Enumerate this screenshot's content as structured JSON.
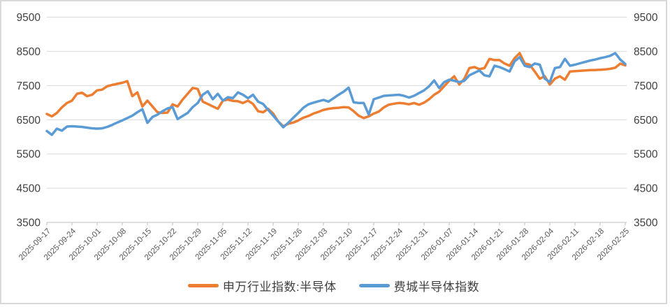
{
  "chart_data": {
    "type": "line",
    "title": "",
    "description_x": "daily points, one per trading day; axis labels shown weekly",
    "x_start_label": "2025-09-17",
    "x_end_label": "2026-02-25",
    "points_per_x_label": 5,
    "x_tick_labels": [
      "2025-09-17",
      "2025-09-24",
      "2025-10-01",
      "2025-10-08",
      "2025-10-15",
      "2025-10-22",
      "2025-10-29",
      "2025-11-05",
      "2025-11-12",
      "2025-11-19",
      "2025-11-26",
      "2025-12-03",
      "2025-12-10",
      "2025-12-17",
      "2025-12-24",
      "2025-12-31",
      "2026-01-07",
      "2026-01-14",
      "2026-01-21",
      "2026-01-28",
      "2026-02-04",
      "2026-02-11",
      "2026-02-18",
      "2026-02-25"
    ],
    "y_ticks": [
      3500,
      4500,
      5500,
      6500,
      7500,
      8500,
      9500
    ],
    "ylim": [
      3500,
      9500
    ],
    "y_axis_sides": [
      "left",
      "right"
    ],
    "grid": true,
    "legend_position": "bottom",
    "colors": {
      "gridline": "#d9d9d9",
      "axis_line": "#bfbfbf",
      "y_label_text": "#404040",
      "x_label_text": "#595959",
      "legend_text": "#404040"
    },
    "series": [
      {
        "name": "申万行业指数:半导体",
        "color": "#ED7D31",
        "values": [
          6670,
          6600,
          6700,
          6860,
          6990,
          7060,
          7260,
          7290,
          7190,
          7230,
          7360,
          7380,
          7480,
          7520,
          7550,
          7580,
          7630,
          7190,
          7300,
          6890,
          7060,
          6890,
          6720,
          6700,
          6710,
          6950,
          6890,
          7090,
          7260,
          7430,
          7400,
          7030,
          6960,
          6890,
          6820,
          7060,
          7090,
          7050,
          7040,
          6990,
          7060,
          6960,
          6750,
          6720,
          6820,
          6680,
          6450,
          6310,
          6380,
          6420,
          6480,
          6560,
          6610,
          6680,
          6730,
          6790,
          6820,
          6840,
          6850,
          6870,
          6860,
          6750,
          6620,
          6550,
          6600,
          6680,
          6740,
          6860,
          6940,
          6970,
          6990,
          6980,
          6950,
          6990,
          6940,
          7000,
          7100,
          7230,
          7320,
          7480,
          7640,
          7770,
          7530,
          7700,
          8010,
          8040,
          7980,
          8010,
          8280,
          8245,
          8245,
          8145,
          8080,
          8300,
          8450,
          8145,
          8110,
          7910,
          7700,
          7770,
          7530,
          7700,
          7770,
          7670,
          7910,
          7920,
          7930,
          7940,
          7950,
          7955,
          7960,
          7970,
          7990,
          8020,
          8140,
          8090
        ]
      },
      {
        "name": "费城半导体指数",
        "color": "#5B9BD5",
        "values": [
          6170,
          6060,
          6240,
          6180,
          6300,
          6310,
          6300,
          6290,
          6270,
          6250,
          6240,
          6250,
          6290,
          6350,
          6420,
          6480,
          6550,
          6620,
          6720,
          6810,
          6410,
          6580,
          6650,
          6750,
          6830,
          6870,
          6520,
          6610,
          6700,
          6870,
          6990,
          7230,
          7330,
          7100,
          7260,
          7060,
          7160,
          7130,
          7300,
          7230,
          7130,
          7230,
          7030,
          6960,
          6790,
          6620,
          6450,
          6280,
          6410,
          6560,
          6700,
          6850,
          6950,
          7000,
          7040,
          7080,
          7030,
          7130,
          7230,
          7320,
          7440,
          7010,
          6990,
          6990,
          6650,
          7100,
          7150,
          7200,
          7210,
          7220,
          7230,
          7200,
          7150,
          7200,
          7280,
          7360,
          7480,
          7650,
          7430,
          7600,
          7670,
          7640,
          7600,
          7640,
          7800,
          7870,
          7940,
          7800,
          7770,
          8080,
          8040,
          7980,
          7910,
          8210,
          8330,
          8080,
          8040,
          8145,
          8110,
          7700,
          7600,
          8010,
          8040,
          8280,
          8080,
          8110,
          8150,
          8190,
          8230,
          8260,
          8300,
          8330,
          8370,
          8450,
          8260,
          8130
        ]
      }
    ]
  },
  "legend": {
    "items": [
      {
        "label": "申万行业指数:半导体",
        "color": "#ED7D31"
      },
      {
        "label": "费城半导体指数",
        "color": "#5B9BD5"
      }
    ]
  }
}
